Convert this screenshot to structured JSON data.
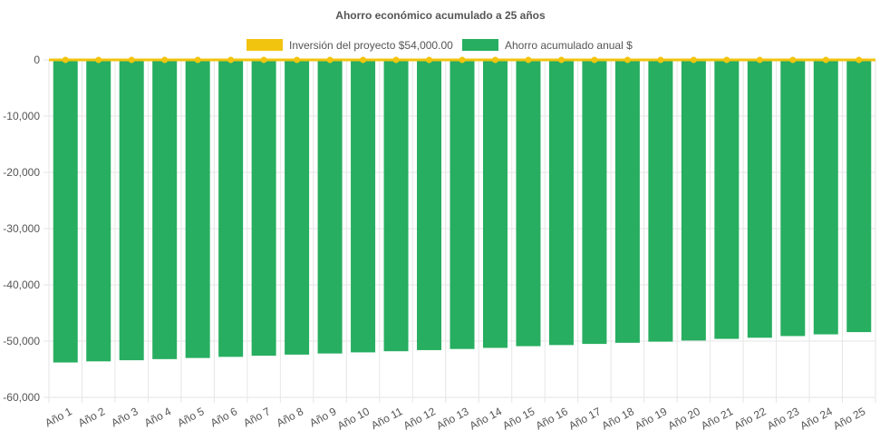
{
  "chart_data": {
    "type": "bar",
    "title": "Ahorro económico acumulado a 25 años",
    "categories": [
      "Año 1",
      "Año 2",
      "Año 3",
      "Año 4",
      "Año 5",
      "Año 6",
      "Año 7",
      "Año 8",
      "Año 9",
      "Año 10",
      "Año 11",
      "Año 12",
      "Año 13",
      "Año 14",
      "Año 15",
      "Año 16",
      "Año 17",
      "Año 18",
      "Año 19",
      "Año 20",
      "Año 21",
      "Año 22",
      "Año 23",
      "Año 24",
      "Año 25"
    ],
    "series": [
      {
        "name": "Inversión del proyecto $54,000.00",
        "type": "line",
        "color": "#f1c40f",
        "values": [
          0,
          0,
          0,
          0,
          0,
          0,
          0,
          0,
          0,
          0,
          0,
          0,
          0,
          0,
          0,
          0,
          0,
          0,
          0,
          0,
          0,
          0,
          0,
          0,
          0
        ]
      },
      {
        "name": "Ahorro acumulado anual $",
        "type": "bar",
        "color": "#27ae60",
        "values": [
          -53800,
          -53600,
          -53400,
          -53200,
          -53000,
          -52800,
          -52600,
          -52400,
          -52200,
          -52000,
          -51800,
          -51600,
          -51400,
          -51200,
          -50900,
          -50700,
          -50500,
          -50300,
          -50100,
          -49900,
          -49600,
          -49400,
          -49100,
          -48800,
          -48400
        ]
      }
    ],
    "yticks": [
      0,
      -10000,
      -20000,
      -30000,
      -40000,
      -50000,
      -60000
    ],
    "ytick_labels": [
      "0",
      "-10,000",
      "-20,000",
      "-30,000",
      "-40,000",
      "-50,000",
      "-60,000"
    ],
    "ylim": [
      -60000,
      0
    ],
    "legend_position": "top",
    "grid": true
  }
}
